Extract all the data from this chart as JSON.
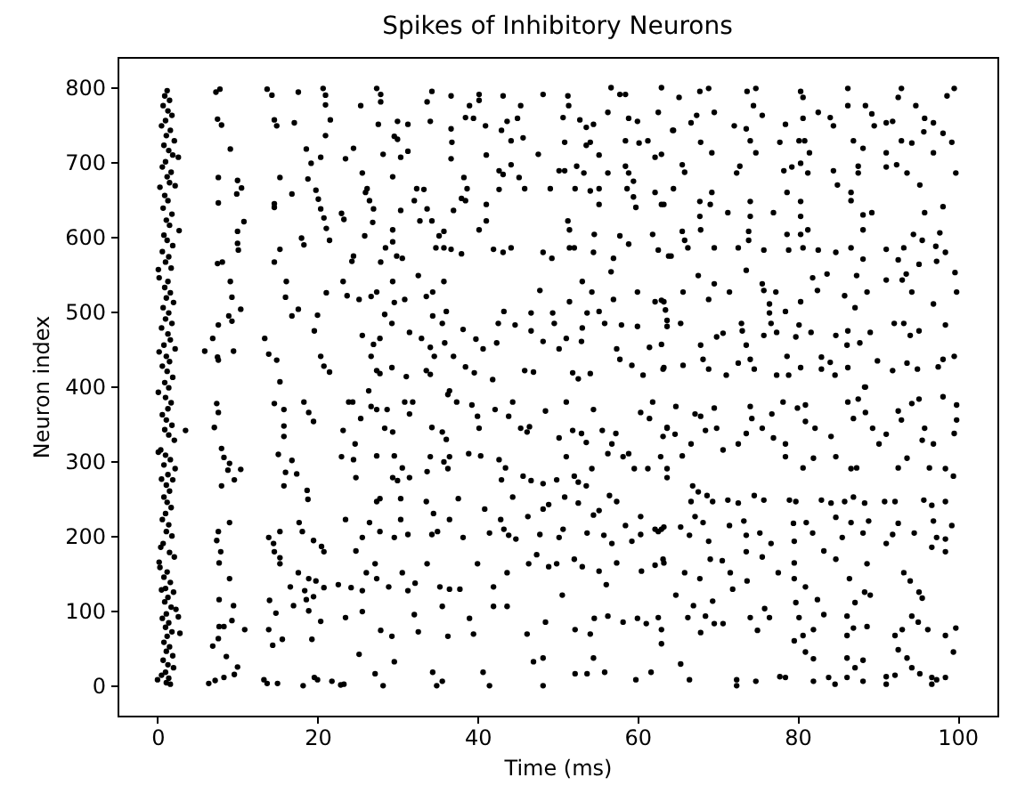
{
  "chart_data": {
    "type": "scatter",
    "title": "Spikes of Inhibitory Neurons",
    "xlabel": "Time (ms)",
    "ylabel": "Neuron index",
    "xlim": [
      -5,
      105
    ],
    "ylim": [
      -40,
      840
    ],
    "xticks": [
      0,
      20,
      40,
      60,
      80,
      100
    ],
    "yticks": [
      0,
      100,
      200,
      300,
      400,
      500,
      600,
      700,
      800
    ],
    "marker": "circle",
    "series": [
      {
        "color": "#000000",
        "x": [
          1.2,
          0.9,
          1.5,
          0.7,
          1.3,
          1.8,
          1.0,
          0.5,
          1.6,
          1.1,
          2.1,
          0.8,
          1.4,
          1.9,
          2.6,
          1.0,
          0.6,
          1.7,
          1.2,
          0.3,
          1.5,
          2.2,
          0.9,
          1.3,
          0.7,
          1.8,
          1.1,
          1.5,
          2.7,
          0.8,
          1.2,
          1.9,
          0.6,
          1.4,
          1.0,
          1.7,
          0.1,
          0.2,
          1.3,
          0.9,
          1.6,
          1.1,
          2.0,
          0.7,
          1.4,
          1.0,
          1.8,
          0.5,
          1.3,
          1.6,
          0.8,
          2.2,
          0.2,
          1.1,
          1.5,
          0.6,
          1.2,
          1.9,
          0.9,
          1.4,
          0.1,
          1.0,
          1.7,
          1.3,
          0.6,
          1.1,
          1.8,
          0.9,
          3.5,
          1.4,
          2.1,
          0.4,
          0.1,
          1.0,
          1.6,
          0.8,
          2.2,
          1.3,
          1.9,
          0.5,
          1.1,
          1.5,
          0.8,
          1.2,
          1.7,
          1.0,
          0.6,
          1.4,
          1.1,
          1.8,
          0.7,
          0.4,
          1.5,
          2.1,
          0.2,
          0.3,
          1.2,
          0.8,
          1.6,
          1.0,
          0.5,
          2.0,
          1.3,
          0.9,
          1.7,
          2.3,
          1.1,
          2.6,
          0.6,
          1.4,
          1.0,
          1.8,
          2.8,
          1.2,
          0.8,
          1.5,
          1.1,
          1.9,
          0.7,
          1.3,
          2.0,
          1.0,
          0.5,
          1.4,
          0.0,
          1.1,
          1.6,
          7.3,
          7.8,
          7.5,
          8.0,
          9.1,
          7.6,
          10.0,
          10.5,
          9.9,
          7.6,
          10.8,
          10.0,
          10.0,
          10.1,
          7.5,
          8.1,
          9.1,
          9.3,
          10.4,
          8.9,
          9.3,
          7.6,
          6.9,
          5.9,
          7.5,
          9.5,
          7.6,
          13.7,
          14.3,
          14.6,
          14.9,
          15.3,
          14.6,
          14.6,
          15.3,
          14.6,
          16.1,
          16.0,
          16.8,
          13.4,
          13.9,
          14.9,
          15.3,
          17.6,
          17.1,
          16.8,
          18.0,
          18.3,
          17.6,
          18.6,
          19.2,
          18.8,
          20.7,
          21.0,
          21.0,
          21.6,
          21.0,
          20.4,
          19.8,
          20.1,
          20.4,
          20.8,
          21.1,
          21.5,
          21.1,
          20.0,
          19.6,
          20.4,
          20.8,
          21.5,
          7.4,
          7.6,
          7.1,
          8.0,
          8.3,
          9.0,
          8.8,
          10.4,
          9.6,
          8.0,
          9.0,
          7.6,
          7.4,
          7.9,
          7.7,
          9.0,
          7.7,
          9.5,
          7.7,
          8.3,
          10.9,
          9.3,
          7.6,
          6.9,
          8.6,
          10.0,
          9.6,
          8.3,
          7.2,
          6.4,
          14.6,
          15.8,
          15.8,
          15.8,
          15.1,
          16.0,
          15.8,
          16.8,
          17.4,
          18.3,
          18.9,
          19.5,
          18.7,
          18.8,
          18.1,
          17.7,
          15.3,
          13.9,
          14.5,
          14.6,
          15.3,
          15.3,
          19.5,
          20.5,
          20.8,
          17.6,
          18.9,
          19.8,
          16.6,
          18.4,
          20.8,
          18.6,
          19.5,
          17.0,
          14.0,
          14.8,
          18.9,
          20.4,
          13.9,
          14.4,
          15.6,
          19.3,
          13.3,
          13.7,
          15.0,
          18.2,
          19.6,
          20.0,
          21.8,
          22.9,
          27.4,
          27.9,
          27.9,
          25.4,
          27.6,
          30.0,
          31.3,
          29.6,
          30.0,
          24.5,
          23.5,
          28.2,
          30.4,
          31.3,
          34.3,
          33.7,
          34.1,
          36.7,
          36.7,
          36.8,
          36.7,
          38.5,
          40.2,
          40.2,
          39.0,
          39.5,
          41.0,
          43.2,
          43.0,
          43.7,
          45.4,
          45.0,
          45.7,
          44.2,
          41.1,
          48.2,
          47.6,
          51.3,
          51.4,
          50.7,
          52.8,
          53.6,
          54.5,
          54.1,
          53.6,
          55.2,
          50.9,
          56.7,
          57.8,
          58.5,
          56.3,
          58.9,
          60.0,
          58.5,
          60.2,
          61.3,
          63.0,
          62.6,
          62.2,
          63.0,
          64.4,
          25.6,
          29.4,
          26.2,
          26.0,
          26.5,
          27.0,
          23.0,
          23.3,
          26.9,
          25.9,
          29.4,
          29.4,
          28.5,
          27.9,
          29.9,
          30.6,
          24.5,
          24.3,
          30.4,
          32.4,
          33.3,
          32.1,
          33.7,
          34.3,
          32.8,
          35.8,
          35.2,
          34.8,
          35.8,
          36.7,
          38.0,
          38.3,
          38.7,
          38.0,
          38.5,
          37.0,
          41.1,
          41.1,
          40.2,
          42.7,
          44.2,
          45.2,
          43.2,
          45.9,
          42.7,
          42.0,
          43.2,
          44.2,
          48.2,
          49.3,
          51.3,
          51.5,
          51.5,
          52.1,
          54.6,
          54.5,
          49.1,
          50.2,
          50.9,
          52.4,
          53.3,
          52.2,
          54.1,
          55.2,
          55.2,
          56.3,
          58.5,
          58.9,
          59.5,
          58.7,
          59.5,
          59.8,
          62.2,
          63.0,
          57.8,
          58.9,
          57.0,
          56.7,
          61.9,
          62.6,
          64.2,
          23.2,
          23.7,
          25.2,
          26.7,
          27.4,
          29.4,
          29.6,
          28.4,
          29.3,
          30.9,
          32.6,
          33.6,
          34.4,
          35.8,
          36.1,
          34.4,
          35.6,
          31.5,
          33.0,
          34.1,
          34.6,
          35.9,
          37.0,
          38.2,
          39.8,
          40.7,
          42.4,
          42.6,
          43.3,
          44.7,
          46.7,
          46.7,
          47.8,
          48.2,
          49.4,
          49.6,
          50.2,
          51.1,
          51.5,
          53.1,
          54.3,
          53.7,
          53.1,
          53.0,
          55.2,
          55.9,
          57.0,
          58.0,
          57.4,
          60.0,
          60.0,
          62.2,
          63.0,
          63.5,
          63.7,
          63.0,
          61.5,
          25.6,
          27.0,
          27.8,
          26.7,
          27.4,
          27.8,
          29.3,
          31.1,
          33.6,
          34.1,
          36.5,
          38.5,
          39.6,
          41.9,
          45.9,
          47.0,
          51.9,
          52.6,
          54.1,
          57.8,
          59.3,
          60.7,
          63.2,
          26.4,
          23.9,
          24.4,
          25.4,
          26.7,
          27.4,
          28.7,
          28.4,
          29.4,
          30.9,
          31.5,
          31.9,
          34.3,
          35.6,
          36.1,
          36.3,
          37.4,
          39.3,
          40.0,
          40.2,
          42.2,
          44.4,
          43.9,
          45.4,
          46.2,
          46.5,
          48.5,
          51.1,
          51.9,
          50.2,
          53.0,
          53.6,
          54.5,
          55.6,
          57.3,
          56.8,
          60.4,
          61.9,
          61.5,
          63.2,
          63.7,
          23.2,
          24.7,
          23.0,
          24.5,
          24.8,
          27.4,
          29.6,
          30.6,
          29.4,
          30.0,
          31.5,
          34.1,
          33.7,
          36.3,
          36.5,
          35.8,
          38.9,
          40.4,
          42.7,
          43.5,
          43.0,
          45.7,
          46.7,
          48.2,
          51.1,
          49.9,
          52.1,
          53.6,
          52.6,
          54.3,
          56.3,
          58.2,
          58.9,
          59.6,
          61.3,
          62.9,
          63.7,
          27.4,
          27.8,
          26.5,
          23.5,
          30.4,
          30.4,
          33.6,
          34.5,
          36.5,
          37.6,
          40.9,
          42.9,
          44.4,
          46.3,
          48.2,
          48.9,
          50.9,
          52.6,
          54.5,
          55.2,
          56.5,
          57.4,
          58.5,
          60.4,
          62.2,
          63.3,
          25.6,
          27.8,
          29.6,
          31.3,
          34.3,
          35.0,
          38.2,
          41.5,
          43.3,
          43.9,
          44.8,
          47.8,
          50.2,
          50.7,
          53.7,
          55.8,
          56.8,
          59.3,
          60.4,
          62.6,
          24.8,
          26.1,
          24.2,
          22.6,
          25.6,
          27.4,
          27.2,
          28.9,
          30.6,
          31.3,
          32.2,
          33.7,
          35.3,
          36.5,
          37.8,
          40.0,
          42.0,
          43.7,
          46.4,
          47.4,
          48.9,
          49.9,
          50.6,
          52.1,
          53.1,
          55.2,
          56.1,
          57.4,
          60.5,
          62.2,
          63.2,
          23.5,
          25.6,
          27.9,
          29.3,
          32.1,
          32.6,
          35.6,
          36.3,
          39.0,
          39.5,
          42.0,
          43.7,
          46.2,
          48.5,
          52.2,
          54.1,
          54.6,
          56.3,
          58.2,
          60.0,
          61.1,
          63.0,
          25.2,
          29.6,
          27.2,
          28.2,
          34.4,
          35.6,
          34.9,
          40.7,
          41.5,
          47.0,
          48.2,
          48.2,
          52.2,
          53.7,
          54.5,
          55.9,
          59.8,
          61.7,
          23.3,
          65.2,
          67.8,
          68.9,
          67.4,
          69.6,
          64.5,
          66.7,
          67.9,
          69.3,
          73.7,
          74.8,
          74.5,
          75.6,
          72.1,
          73.6,
          74.1,
          74.8,
          77.8,
          78.5,
          80.4,
          80.7,
          80.7,
          80.2,
          80.9,
          81.5,
          82.6,
          84.1,
          84.5,
          86.3,
          86.3,
          88.5,
          89.3,
          89.6,
          91.1,
          91.9,
          87.0,
          88.2,
          91.1,
          93.0,
          92.6,
          94.8,
          95.9,
          97.0,
          95.8,
          98.2,
          99.3,
          93.0,
          94.3,
          97.0,
          98.7,
          99.6,
          65.6,
          65.9,
          64.5,
          63.3,
          67.8,
          69.3,
          69.1,
          67.8,
          71.3,
          72.4,
          72.8,
          74.1,
          74.1,
          77.0,
          78.3,
          79.3,
          80.4,
          81.3,
          78.7,
          80.4,
          80.4,
          85.0,
          86.7,
          86.7,
          84.5,
          87.6,
          87.6,
          88.2,
          89.3,
          91.1,
          92.4,
          93.7,
          95.3,
          95.9,
          98.2,
          99.8,
          65.6,
          65.9,
          67.9,
          66.3,
          69.6,
          72.6,
          73.9,
          73.9,
          75.8,
          78.7,
          78.9,
          80.4,
          81.3,
          80.7,
          82.6,
          84.8,
          86.7,
          88.2,
          91.1,
          93.3,
          94.5,
          95.6,
          97.3,
          97.8,
          98.5,
          63.9,
          92.6,
          95.2,
          97.4,
          88.2,
          67.6,
          69.6,
          65.7,
          68.9,
          71.5,
          73.6,
          75.6,
          75.8,
          77.3,
          76.5,
          76.5,
          78.5,
          80.4,
          81.9,
          82.5,
          83.7,
          85.9,
          87.2,
          87.4,
          88.7,
          91.1,
          93.1,
          93.6,
          94.3,
          97.0,
          99.9,
          99.7,
          63.3,
          63.7,
          65.4,
          67.9,
          68.2,
          69.9,
          70.7,
          73.0,
          73.1,
          73.6,
          74.1,
          75.8,
          77.4,
          76.7,
          78.7,
          79.8,
          80.2,
          81.7,
          83.0,
          84.1,
          84.8,
          86.3,
          86.2,
          87.8,
          89.1,
          90.0,
          92.1,
          93.3,
          94.1,
          95.2,
          98.5,
          99.6,
          63.3,
          65.7,
          68.9,
          71.1,
          72.6,
          74.6,
          77.4,
          78.9,
          80.4,
          83.0,
          84.7,
          86.3,
          88.5,
          91.9,
          93.7,
          95.0,
          97.6,
          98.2,
          64.8,
          67.2,
          67.9,
          69.6,
          74.1,
          74.3,
          76.8,
          78.2,
          80.0,
          81.0,
          81.0,
          82.2,
          86.3,
          87.0,
          87.6,
          88.5,
          88.4,
          89.4,
          90.2,
          91.1,
          92.6,
          93.0,
          94.3,
          95.2,
          95.9,
          98.2,
          99.9,
          99.9,
          99.6,
          63.7,
          64.7,
          65.6,
          66.7,
          68.5,
          69.9,
          70.7,
          72.6,
          73.6,
          75.6,
          77.0,
          78.5,
          78.5,
          80.7,
          82.0,
          84.2,
          84.8,
          86.7,
          87.4,
          92.6,
          93.7,
          95.6,
          97.0,
          96.5,
          98.5,
          99.5,
          63.7,
          66.9,
          67.6,
          68.7,
          66.7,
          67.2,
          69.4,
          71.3,
          72.6,
          74.6,
          75.8,
          79.0,
          79.8,
          83.0,
          84.2,
          85.9,
          87.0,
          88.4,
          90.9,
          92.2,
          95.8,
          96.8,
          98.5,
          63.0,
          65.4,
          66.5,
          68.2,
          68.9,
          71.5,
          73.3,
          73.6,
          75.3,
          76.7,
          79.5,
          79.6,
          81.1,
          81.9,
          84.8,
          85.6,
          86.7,
          88.2,
          88.9,
          91.1,
          91.9,
          92.6,
          94.6,
          97.0,
          97.4,
          98.5,
          99.3,
          96.8,
          98.5,
          63.3,
          65.9,
          67.8,
          69.1,
          70.6,
          71.6,
          71.9,
          73.7,
          73.6,
          75.6,
          77.6,
          79.6,
          79.6,
          81.0,
          83.3,
          84.8,
          86.5,
          88.7,
          88.4,
          89.1,
          87.2,
          93.3,
          94.1,
          95.2,
          95.6,
          64.8,
          67.0,
          66.3,
          69.4,
          68.5,
          67.9,
          69.6,
          70.7,
          74.1,
          75.0,
          75.9,
          76.5,
          79.8,
          80.2,
          80.7,
          79.6,
          81.0,
          82.0,
          82.5,
          83.3,
          82.0,
          86.2,
          86.2,
          87.0,
          88.7,
          86.2,
          87.2,
          88.2,
          92.2,
          92.6,
          93.1,
          93.7,
          94.3,
          95.1,
          96.3,
          98.5,
          99.5,
          99.8,
          62.6,
          63.0,
          65.4,
          66.5,
          72.4,
          72.4,
          74.8,
          77.8,
          78.5,
          82.0,
          83.9,
          84.7,
          86.2,
          88.2,
          91.1,
          91.1,
          92.2,
          94.3,
          95.3,
          96.8,
          96.8,
          97.4,
          98.5
        ],
        "values": [
          795,
          788,
          782,
          775,
          768,
          762,
          755,
          748,
          742,
          735,
          728,
          722,
          715,
          709,
          706,
          700,
          693,
          686,
          680,
          666,
          672,
          668,
          655,
          648,
          638,
          630,
          622,
          615,
          608,
          602,
          595,
          588,
          580,
          573,
          566,
          558,
          556,
          545,
          540,
          532,
          525,
          518,
          512,
          505,
          498,
          490,
          484,
          478,
          470,
          462,
          455,
          450,
          446,
          440,
          433,
          427,
          420,
          412,
          405,
          398,
          392,
          385,
          378,
          370,
          362,
          355,
          348,
          342,
          341,
          335,
          328,
          315,
          312,
          308,
          302,
          295,
          290,
          282,
          275,
          276,
          268,
          260,
          252,
          245,
          238,
          230,
          222,
          215,
          206,
          200,
          190,
          185,
          178,
          172,
          165,
          158,
          152,
          145,
          138,
          130,
          128,
          125,
          118,
          112,
          105,
          102,
          96,
          92,
          90,
          84,
          78,
          72,
          70,
          66,
          58,
          52,
          46,
          40,
          34,
          28,
          24,
          18,
          14,
          10,
          8,
          4,
          2,
          793,
          797,
          757,
          749,
          717,
          679,
          675,
          665,
          657,
          645,
          620,
          607,
          591,
          582,
          564,
          566,
          540,
          519,
          503,
          494,
          487,
          482,
          464,
          447,
          439,
          447,
          435,
          797,
          789,
          756,
          748,
          679,
          644,
          639,
          583,
          566,
          540,
          519,
          494,
          464,
          443,
          435,
          406,
          793,
          752,
          657,
          598,
          589,
          503,
          717,
          698,
          677,
          798,
          789,
          776,
          756,
          735,
          706,
          662,
          650,
          637,
          625,
          611,
          595,
          525,
          495,
          474,
          440,
          427,
          419,
          377,
          365,
          345,
          317,
          305,
          297,
          288,
          289,
          275,
          267,
          218,
          206,
          194,
          179,
          164,
          143,
          115,
          107,
          79,
          79,
          75,
          87,
          63,
          53,
          39,
          25,
          15,
          11,
          7,
          3,
          377,
          369,
          347,
          333,
          309,
          285,
          267,
          301,
          283,
          379,
          365,
          353,
          261,
          249,
          206,
          218,
          206,
          198,
          190,
          179,
          171,
          163,
          194,
          186,
          179,
          151,
          143,
          140,
          132,
          127,
          131,
          115,
          119,
          107,
          114,
          97,
          100,
          86,
          75,
          54,
          62,
          62,
          8,
          3,
          3,
          0,
          11,
          8,
          6,
          1,
          798,
          790,
          780,
          775,
          750,
          754,
          750,
          734,
          730,
          718,
          704,
          710,
          706,
          714,
          794,
          780,
          754,
          788,
          744,
          726,
          704,
          759,
          790,
          782,
          775,
          758,
          748,
          788,
          742,
          754,
          775,
          758,
          732,
          728,
          709,
          790,
          710,
          788,
          775,
          759,
          756,
          746,
          750,
          726,
          722,
          709,
          726,
          799,
          790,
          790,
          766,
          758,
          754,
          728,
          725,
          728,
          799,
          766,
          706,
          710,
          742,
          685,
          680,
          664,
          659,
          648,
          637,
          631,
          623,
          619,
          601,
          609,
          593,
          585,
          566,
          574,
          571,
          574,
          567,
          635,
          664,
          663,
          648,
          637,
          621,
          621,
          607,
          601,
          585,
          585,
          583,
          577,
          679,
          664,
          651,
          648,
          635,
          643,
          621,
          609,
          688,
          696,
          679,
          683,
          664,
          663,
          583,
          579,
          585,
          579,
          571,
          621,
          609,
          585,
          585,
          603,
          579,
          664,
          688,
          688,
          694,
          685,
          664,
          661,
          664,
          643,
          685,
          694,
          685,
          674,
          664,
          653,
          639,
          659,
          643,
          601,
          590,
          571,
          553,
          603,
          582,
          574,
          540,
          521,
          516,
          520,
          526,
          540,
          512,
          496,
          484,
          516,
          548,
          520,
          526,
          540,
          500,
          494,
          484,
          472,
          464,
          452,
          440,
          458,
          440,
          476,
          463,
          450,
          458,
          484,
          500,
          482,
          474,
          498,
          528,
          460,
          498,
          484,
          450,
          464,
          513,
          540,
          526,
          498,
          478,
          460,
          500,
          484,
          516,
          482,
          450,
          480,
          526,
          513,
          515,
          502,
          480,
          456,
          452,
          468,
          456,
          464,
          440,
          421,
          417,
          425,
          413,
          421,
          416,
          394,
          426,
          418,
          409,
          421,
          419,
          418,
          410,
          417,
          436,
          428,
          415,
          423,
          394,
          379,
          379,
          357,
          373,
          369,
          369,
          344,
          339,
          379,
          363,
          379,
          345,
          339,
          329,
          389,
          379,
          375,
          360,
          344,
          369,
          379,
          360,
          344,
          339,
          346,
          367,
          379,
          341,
          331,
          337,
          325,
          369,
          341,
          337,
          323,
          365,
          379,
          357,
          333,
          345,
          341,
          323,
          306,
          302,
          278,
          307,
          307,
          291,
          278,
          274,
          278,
          306,
          286,
          290,
          306,
          299,
          310,
          307,
          302,
          291,
          275,
          280,
          274,
          270,
          306,
          275,
          280,
          267,
          272,
          290,
          310,
          306,
          310,
          290,
          290,
          306,
          290,
          246,
          250,
          218,
          222,
          250,
          222,
          246,
          230,
          222,
          250,
          236,
          222,
          252,
          226,
          236,
          242,
          252,
          244,
          228,
          234,
          254,
          246,
          214,
          226,
          209,
          212,
          198,
          206,
          198,
          202,
          202,
          206,
          198,
          204,
          209,
          201,
          196,
          202,
          198,
          209,
          204,
          201,
          190,
          193,
          202,
          206,
          180,
          151,
          131,
          135,
          127,
          143,
          163,
          132,
          151,
          127,
          137,
          163,
          132,
          129,
          129,
          163,
          132,
          151,
          163,
          175,
          159,
          163,
          121,
          169,
          159,
          153,
          135,
          164,
          153,
          161,
          169,
          91,
          99,
          74,
          66,
          95,
          72,
          106,
          66,
          90,
          69,
          106,
          106,
          69,
          85,
          75,
          69,
          90,
          93,
          85,
          90,
          83,
          75,
          42,
          32,
          16,
          0,
          18,
          6,
          0,
          18,
          0,
          32,
          37,
          0,
          16,
          16,
          37,
          18,
          8,
          18,
          2,
          786,
          794,
          798,
          762,
          766,
          742,
          752,
          726,
          712,
          794,
          798,
          775,
          762,
          748,
          744,
          728,
          712,
          726,
          750,
          794,
          786,
          758,
          728,
          728,
          712,
          766,
          759,
          748,
          798,
          775,
          775,
          764,
          748,
          752,
          754,
          728,
          718,
          712,
          798,
          786,
          775,
          758,
          752,
          740,
          738,
          726,
          728,
          725,
          712,
          788,
          798,
          696,
          686,
          664,
          643,
          647,
          659,
          643,
          627,
          632,
          685,
          694,
          647,
          627,
          632,
          688,
          693,
          698,
          685,
          659,
          647,
          627,
          669,
          659,
          648,
          688,
          694,
          685,
          629,
          632,
          693,
          696,
          685,
          669,
          632,
          640,
          685,
          607,
          595,
          609,
          585,
          585,
          585,
          607,
          595,
          582,
          603,
          582,
          603,
          609,
          585,
          582,
          579,
          585,
          609,
          583,
          585,
          603,
          595,
          587,
          605,
          579,
          574,
          569,
          563,
          567,
          570,
          548,
          537,
          526,
          516,
          526,
          555,
          537,
          528,
          526,
          510,
          498,
          500,
          513,
          545,
          528,
          550,
          521,
          505,
          548,
          526,
          542,
          542,
          550,
          526,
          510,
          526,
          552,
          513,
          488,
          484,
          455,
          436,
          466,
          471,
          484,
          474,
          455,
          436,
          468,
          472,
          484,
          440,
          466,
          482,
          472,
          439,
          432,
          468,
          474,
          455,
          458,
          472,
          434,
          484,
          484,
          468,
          474,
          482,
          440,
          425,
          428,
          423,
          415,
          431,
          423,
          415,
          415,
          425,
          423,
          415,
          425,
          399,
          421,
          431,
          423,
          426,
          436,
          373,
          363,
          360,
          371,
          373,
          357,
          363,
          379,
          371,
          375,
          353,
          344,
          379,
          357,
          383,
          365,
          399,
          344,
          323,
          336,
          367,
          355,
          377,
          383,
          344,
          386,
          375,
          355,
          337,
          344,
          336,
          307,
          323,
          341,
          344,
          315,
          323,
          337,
          344,
          331,
          323,
          306,
          291,
          304,
          333,
          306,
          290,
          291,
          291,
          304,
          328,
          323,
          291,
          290,
          280,
          278,
          267,
          259,
          254,
          246,
          226,
          246,
          248,
          244,
          254,
          248,
          248,
          246,
          248,
          244,
          246,
          252,
          244,
          246,
          246,
          248,
          241,
          246,
          209,
          212,
          201,
          218,
          193,
          214,
          220,
          201,
          204,
          190,
          217,
          193,
          218,
          204,
          225,
          198,
          218,
          204,
          220,
          190,
          202,
          217,
          204,
          220,
          198,
          196,
          214,
          185,
          179,
          164,
          151,
          143,
          169,
          167,
          151,
          129,
          140,
          179,
          172,
          151,
          164,
          143,
          132,
          180,
          169,
          143,
          163,
          125,
          121,
          111,
          151,
          140,
          125,
          117,
          121,
          107,
          91,
          113,
          93,
          71,
          83,
          83,
          91,
          74,
          103,
          91,
          111,
          91,
          67,
          60,
          45,
          36,
          115,
          95,
          75,
          93,
          67,
          77,
          79,
          37,
          24,
          34,
          67,
          48,
          75,
          37,
          93,
          85,
          75,
          67,
          45,
          77,
          91,
          56,
          29,
          8,
          8,
          0,
          6,
          12,
          11,
          6,
          11,
          2,
          11,
          6,
          12,
          2,
          14,
          24,
          16,
          11,
          2,
          8,
          11
        ]
      }
    ]
  }
}
